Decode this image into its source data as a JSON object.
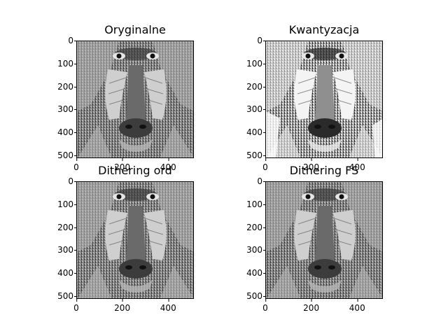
{
  "panels": [
    {
      "title": "Oryginalne",
      "image": "mandrill baboon face, grayscale original",
      "y_ticks": [
        "0",
        "100",
        "200",
        "300",
        "400",
        "500"
      ],
      "x_ticks": [
        "0",
        "200",
        "400"
      ],
      "style": "original"
    },
    {
      "title": "Kwantyzacja",
      "image": "mandrill baboon face, quantized to few gray levels",
      "y_ticks": [
        "0",
        "100",
        "200",
        "300",
        "400",
        "500"
      ],
      "x_ticks": [
        "0",
        "200",
        "400"
      ],
      "style": "quantized"
    },
    {
      "title": "Dithering ord",
      "image": "mandrill baboon face, ordered dithering",
      "y_ticks": [
        "0",
        "100",
        "200",
        "300",
        "400",
        "500"
      ],
      "x_ticks": [
        "0",
        "200",
        "400"
      ],
      "style": "dither"
    },
    {
      "title": "Dithering FS",
      "image": "mandrill baboon face, Floyd-Steinberg dithering",
      "y_ticks": [
        "0",
        "100",
        "200",
        "300",
        "400",
        "500"
      ],
      "x_ticks": [
        "0",
        "200",
        "400"
      ],
      "style": "dither"
    }
  ],
  "axis": {
    "y_values": [
      0,
      100,
      200,
      300,
      400,
      500
    ],
    "x_values": [
      0,
      200,
      400
    ],
    "max": 512
  }
}
